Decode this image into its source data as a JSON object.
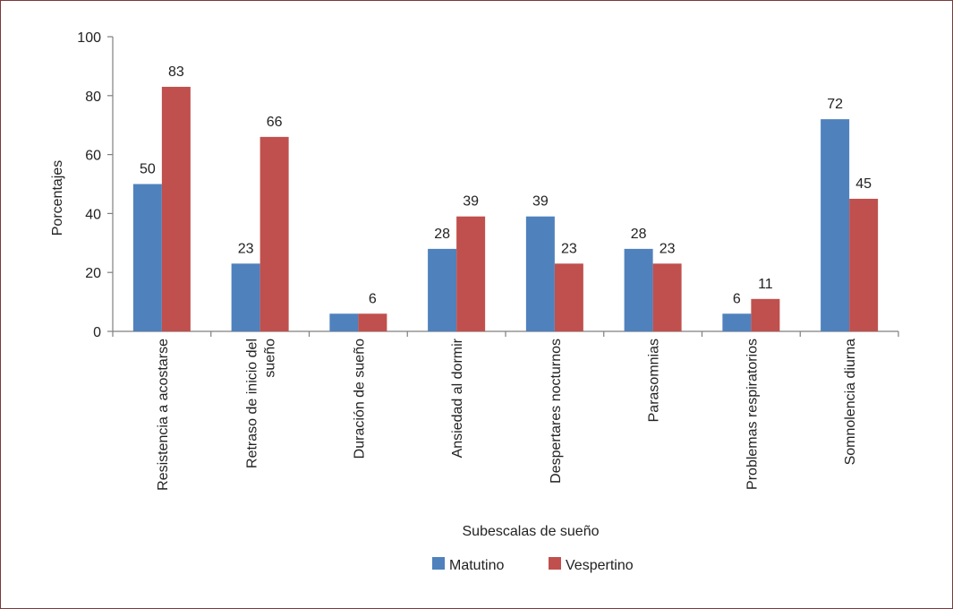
{
  "chart_data": {
    "type": "bar",
    "title": "",
    "xlabel": "Subescalas de sueño",
    "ylabel": "Porcentajes",
    "ylim": [
      0,
      100
    ],
    "yticks": [
      0,
      20,
      40,
      60,
      80,
      100
    ],
    "grid": false,
    "legend_position": "bottom",
    "categories": [
      [
        "Resistencia a acostarse"
      ],
      [
        "Retraso de inicio del",
        "sueño"
      ],
      [
        "Duración de sueño"
      ],
      [
        "Ansiedad al dormir"
      ],
      [
        "Despertares nocturnos"
      ],
      [
        "Parasomnias"
      ],
      [
        "Problemas respiratorios"
      ],
      [
        "Somnolencia diurna"
      ]
    ],
    "series": [
      {
        "name": "Matutino",
        "color": "#4f81bd",
        "values": [
          50,
          23,
          6,
          28,
          39,
          28,
          6,
          72
        ]
      },
      {
        "name": "Vespertino",
        "color": "#c0504d",
        "values": [
          83,
          66,
          6,
          39,
          23,
          23,
          11,
          45
        ]
      }
    ],
    "data_labels": [
      [
        "50",
        "23",
        "",
        "28",
        "39",
        "28",
        "6",
        "72"
      ],
      [
        "83",
        "66",
        "6",
        "39",
        "23",
        "23",
        "11",
        "45"
      ]
    ]
  }
}
